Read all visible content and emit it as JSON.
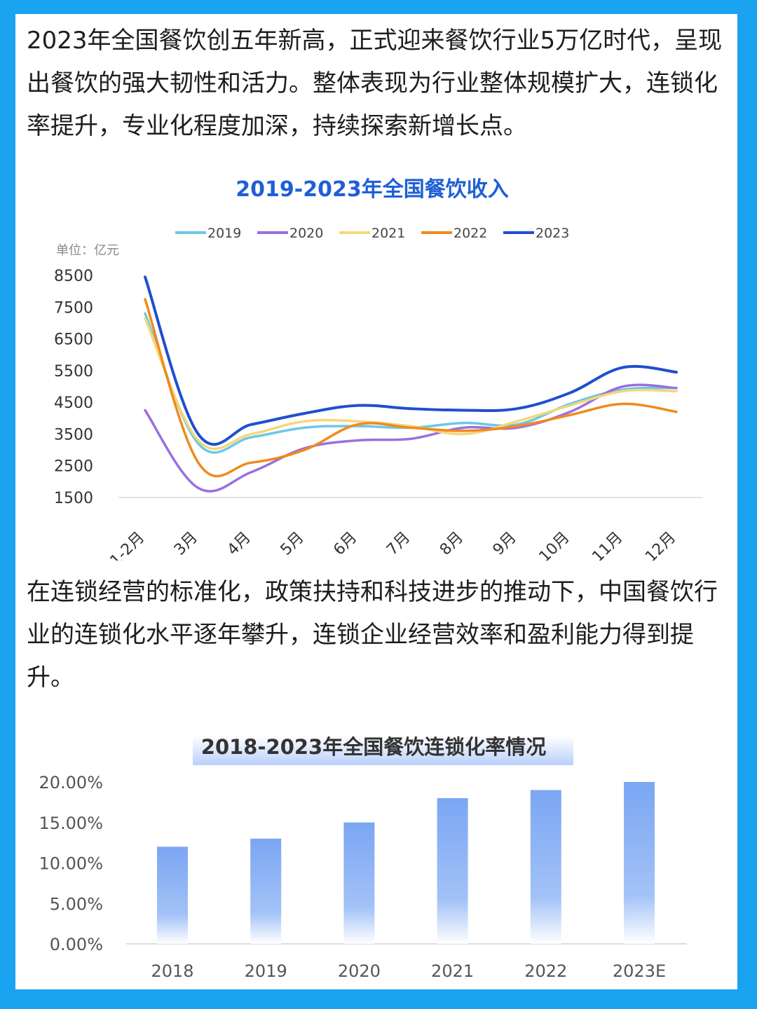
{
  "paragraph1": "2023年全国餐饮创五年新高，正式迎来餐饮行业5万亿时代，呈现出餐饮的强大韧性和活力。整体表现为行业整体规模扩大，连锁化率提升，专业化程度加深，持续探索新增长点。",
  "paragraph2": "在连锁经营的标准化，政策扶持和科技进步的推动下，中国餐饮行业的连锁化水平逐年攀升，连锁企业经营效率和盈利能力得到提升。",
  "colors": {
    "page_border": "#1aa3f0",
    "series_2019": "#6cc8e6",
    "series_2020": "#9b6fe0",
    "series_2021": "#f5d77a",
    "series_2022": "#f08a1c",
    "series_2023": "#1f4fd0",
    "bar_top": "#7aa6f3",
    "bar_bottom": "#ffffff"
  },
  "chart_data": [
    {
      "type": "line",
      "title": "2019-2023年全国餐饮收入",
      "unit_label": "单位：亿元",
      "categories": [
        "1-2月",
        "3月",
        "4月",
        "5月",
        "6月",
        "7月",
        "8月",
        "9月",
        "10月",
        "11月",
        "12月"
      ],
      "ylim": [
        1500,
        8500
      ],
      "yticks": [
        "8500",
        "7500",
        "6500",
        "5500",
        "4500",
        "3500",
        "2500",
        "1500"
      ],
      "legend_position": "top",
      "series": [
        {
          "name": "2019",
          "values": [
            7300,
            3200,
            3400,
            3700,
            3750,
            3700,
            3850,
            3800,
            4450,
            4900,
            4950
          ]
        },
        {
          "name": "2020",
          "values": [
            4250,
            1800,
            2300,
            3050,
            3300,
            3350,
            3700,
            3700,
            4200,
            5000,
            4950
          ]
        },
        {
          "name": "2021",
          "values": [
            7150,
            3300,
            3500,
            3900,
            3900,
            3750,
            3500,
            3900,
            4400,
            4850,
            4850
          ]
        },
        {
          "name": "2022",
          "values": [
            7750,
            2600,
            2600,
            3000,
            3800,
            3700,
            3600,
            3750,
            4100,
            4450,
            4200
          ]
        },
        {
          "name": "2023",
          "values": [
            8450,
            3500,
            3800,
            4150,
            4400,
            4300,
            4250,
            4300,
            4800,
            5600,
            5450
          ]
        }
      ]
    },
    {
      "type": "bar",
      "title": "2018-2023年全国餐饮连锁化率情况",
      "categories": [
        "2018",
        "2019",
        "2020",
        "2021",
        "2022",
        "2023E"
      ],
      "values": [
        12.0,
        13.0,
        15.0,
        18.0,
        19.0,
        20.0
      ],
      "ylim": [
        0,
        20
      ],
      "yticks": [
        "20.00%",
        "15.00%",
        "10.00%",
        "5.00%",
        "0.00%"
      ]
    }
  ]
}
